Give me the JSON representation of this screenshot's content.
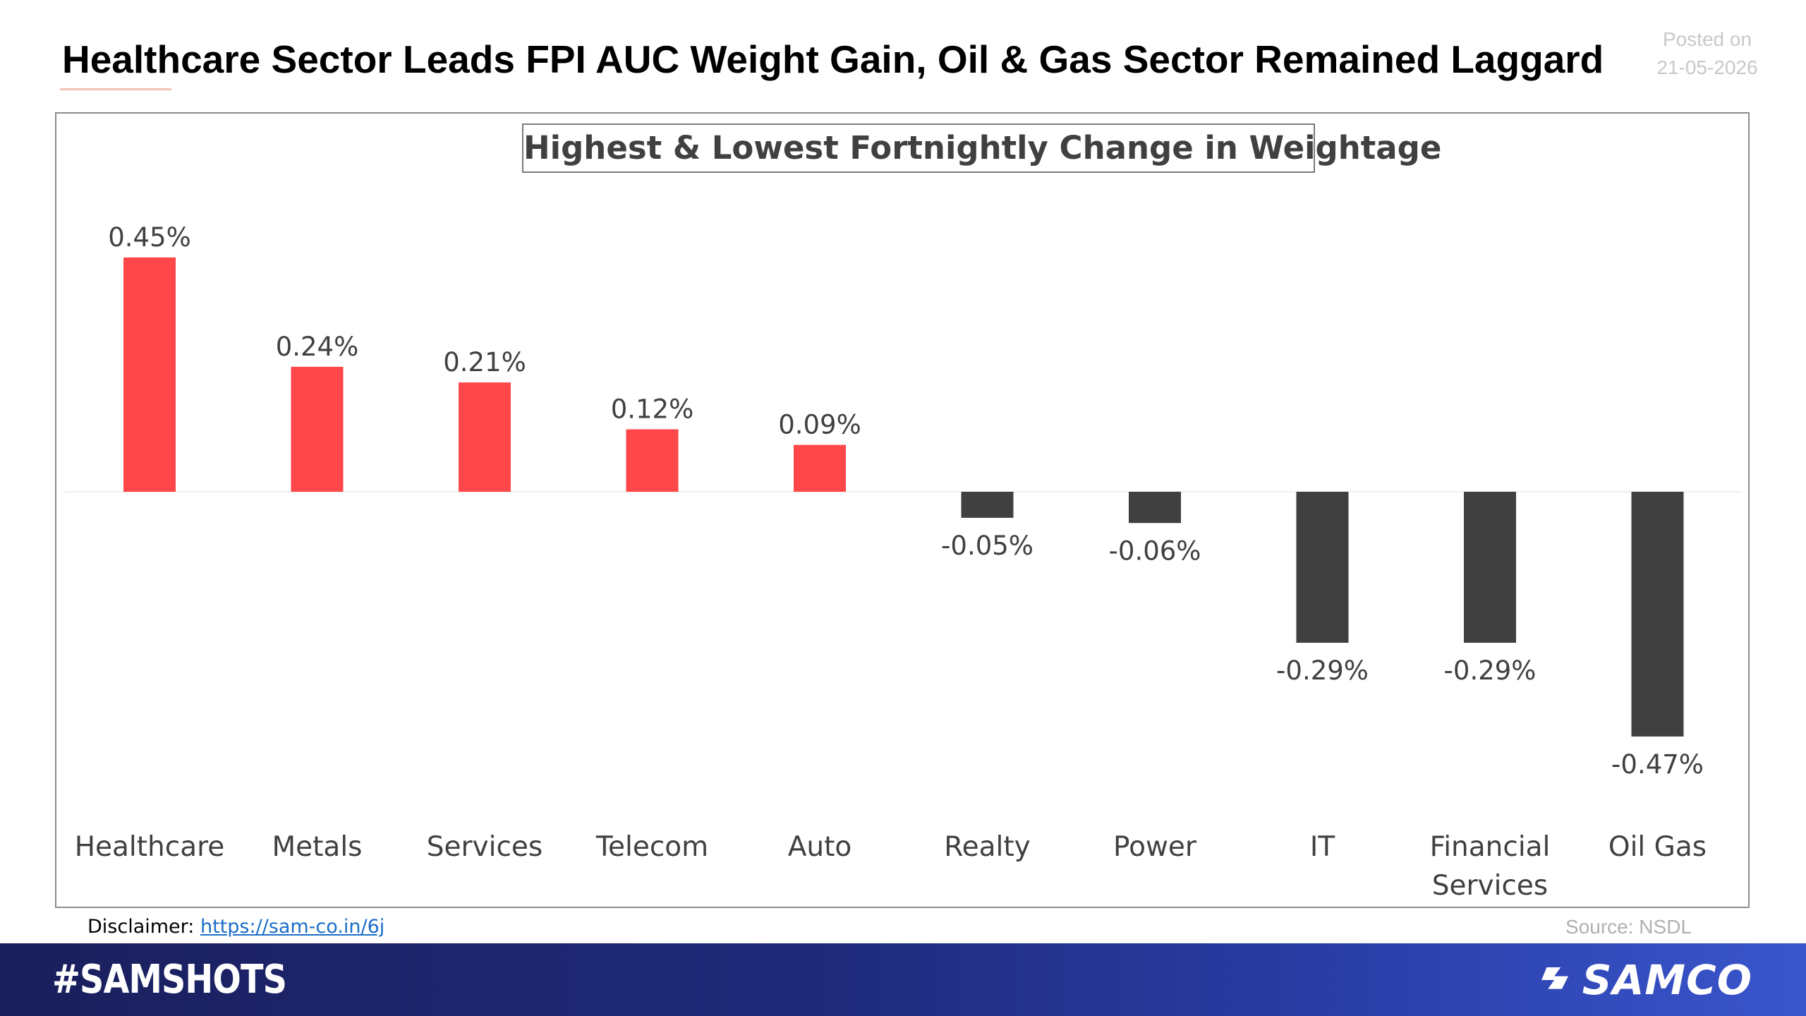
{
  "header": {
    "title": "Healthcare Sector Leads FPI AUC Weight Gain, Oil & Gas Sector Remained Laggard",
    "posted_label": "Posted on",
    "posted_date": "21-05-2026"
  },
  "chart_data": {
    "type": "bar",
    "title": "Highest & Lowest Fortnightly Change in Weightage",
    "categories": [
      "Healthcare",
      "Metals",
      "Services",
      "Telecom",
      "Auto",
      "Realty",
      "Power",
      "IT",
      "Financial Services",
      "Oil Gas"
    ],
    "values": [
      0.45,
      0.24,
      0.21,
      0.12,
      0.09,
      -0.05,
      -0.06,
      -0.29,
      -0.29,
      -0.47
    ],
    "value_labels": [
      "0.45%",
      "0.24%",
      "0.21%",
      "0.12%",
      "0.09%",
      "-0.05%",
      "-0.06%",
      "-0.29%",
      "-0.29%",
      "-0.47%"
    ],
    "unit": "%",
    "xlabel": "",
    "ylabel": "",
    "ylim": [
      -0.47,
      0.45
    ],
    "grid": false,
    "legend": "none",
    "colors": {
      "positive": "#ff474a",
      "negative": "#404040"
    }
  },
  "footer_note": {
    "disclaimer_label": "Disclaimer:",
    "disclaimer_link": "https://sam-co.in/6j",
    "source": "Source: NSDL"
  },
  "footer": {
    "hashtag": "#SAMSHOTS",
    "brand": "SAMCO"
  }
}
